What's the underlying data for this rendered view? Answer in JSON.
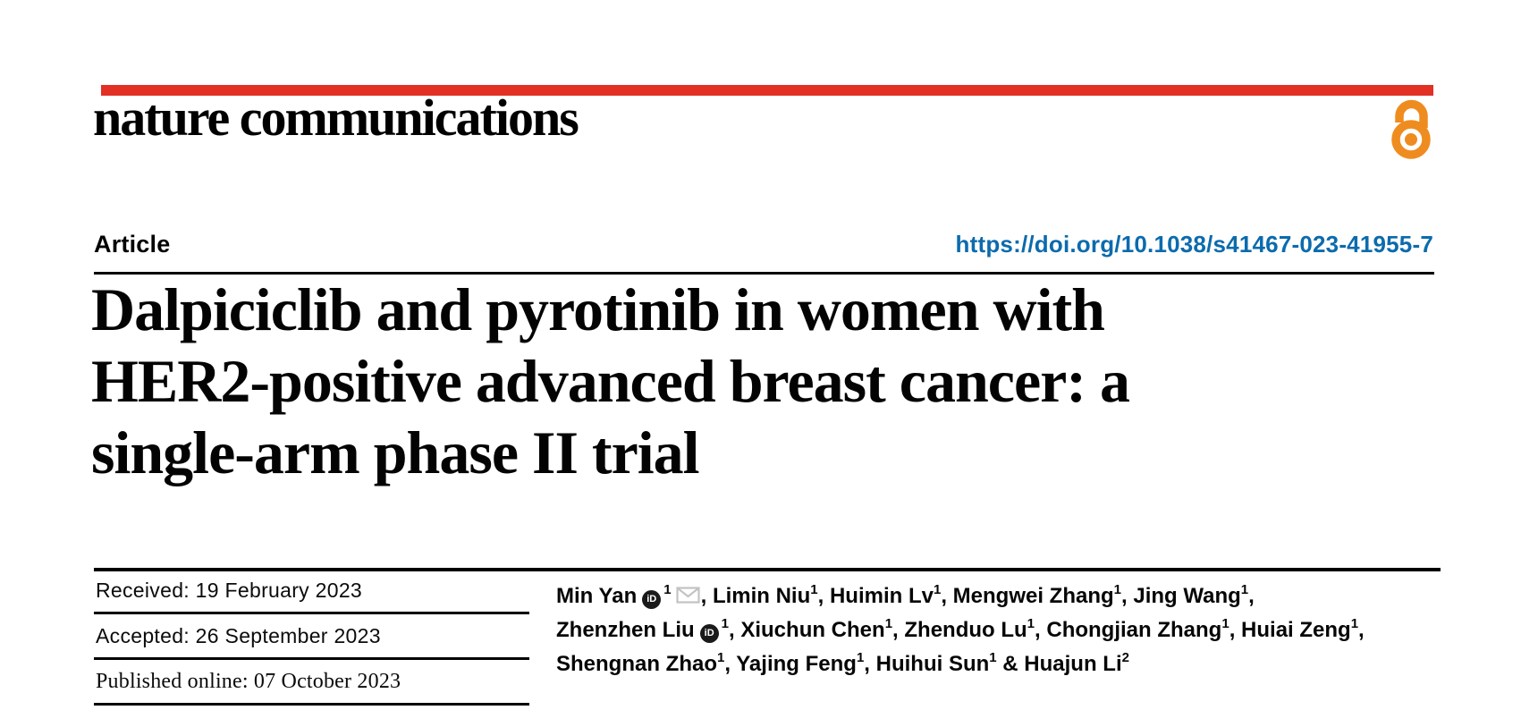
{
  "brand": {
    "logo_text": "nature communications",
    "open_access_icon": "open-access-padlock"
  },
  "header": {
    "article_label": "Article",
    "doi": "https://doi.org/10.1038/s41467-023-41955-7"
  },
  "title": {
    "line1": "Dalpiciclib and pyrotinib in women with",
    "line2": "HER2-positive advanced breast cancer: a",
    "line3": "single-arm phase II trial"
  },
  "dates": {
    "received": "Received: 19 February 2023",
    "accepted": "Accepted: 26 September 2023",
    "published": "Published online: 07 October 2023"
  },
  "icons": {
    "orcid_label": "iD"
  },
  "authors": {
    "line1": [
      {
        "text": "Min Yan",
        "orcid": true,
        "sup": "1",
        "mail": true,
        "sep": ", "
      },
      {
        "text": "Limin Niu",
        "sup": "1",
        "sep": ", "
      },
      {
        "text": "Huimin Lv",
        "sup": "1",
        "sep": ", "
      },
      {
        "text": "Mengwei Zhang",
        "sup": "1",
        "sep": ", "
      },
      {
        "text": "Jing Wang",
        "sup": "1",
        "sep": ","
      }
    ],
    "line2": [
      {
        "text": "Zhenzhen Liu",
        "orcid": true,
        "sup": "1",
        "sep": ", "
      },
      {
        "text": "Xiuchun Chen",
        "sup": "1",
        "sep": ", "
      },
      {
        "text": "Zhenduo Lu",
        "sup": "1",
        "sep": ", "
      },
      {
        "text": "Chongjian Zhang",
        "sup": "1",
        "sep": ", "
      },
      {
        "text": "Huiai Zeng",
        "sup": "1",
        "sep": ","
      }
    ],
    "line3": [
      {
        "text": "Shengnan Zhao",
        "sup": "1",
        "sep": ", "
      },
      {
        "text": "Yajing Feng",
        "sup": "1",
        "sep": ", "
      },
      {
        "text": "Huihui Sun",
        "sup": "1",
        "sep": " & "
      },
      {
        "text": "Huajun Li",
        "sup": "2",
        "sep": ""
      }
    ]
  },
  "colors": {
    "brand_red": "#e23024",
    "oa_orange": "#ef8c1f",
    "link_blue": "#0c6bad",
    "mail_gray": "#c3c3c3"
  }
}
